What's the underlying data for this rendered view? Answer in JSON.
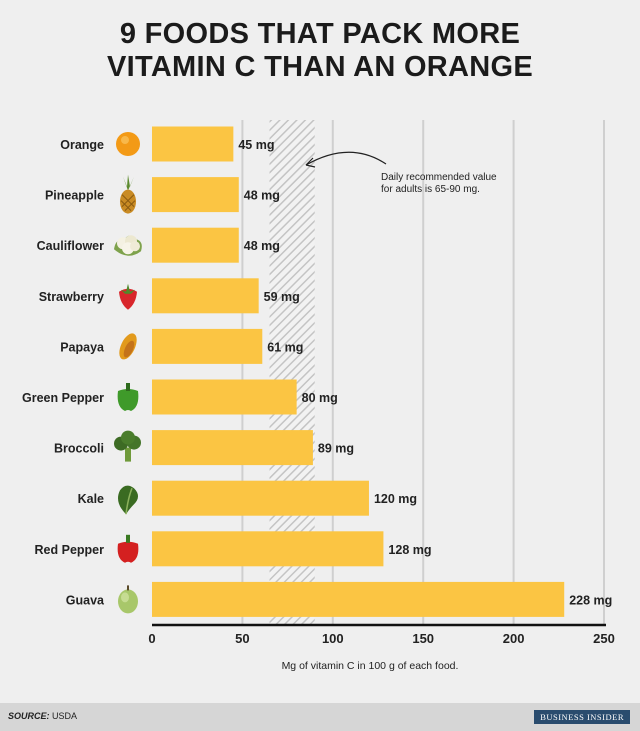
{
  "title_lines": [
    "9 FOODS THAT PACK MORE",
    "VITAMIN C THAN AN ORANGE"
  ],
  "chart_data": {
    "type": "bar",
    "orientation": "horizontal",
    "title": "9 FOODS THAT PACK MORE VITAMIN C THAN AN ORANGE",
    "categories": [
      "Orange",
      "Pineapple",
      "Cauliflower",
      "Strawberry",
      "Papaya",
      "Green Pepper",
      "Broccoli",
      "Kale",
      "Red Pepper",
      "Guava"
    ],
    "values": [
      45,
      48,
      48,
      59,
      61,
      80,
      89,
      120,
      128,
      228
    ],
    "value_labels": [
      "45 mg",
      "48 mg",
      "48 mg",
      "59 mg",
      "61 mg",
      "80 mg",
      "89 mg",
      "120 mg",
      "128 mg",
      "228 mg"
    ],
    "xlim": [
      0,
      250
    ],
    "xticks": [
      0,
      50,
      100,
      150,
      200,
      250
    ],
    "xlabel": "Mg of vitamin C in 100 g of each food.",
    "ylabel": "",
    "grid": "vertical",
    "bar_color": "#fbc543",
    "band_color": "#cfcfcf",
    "recommended_range": [
      65,
      90
    ],
    "annotation": [
      "Daily recommended value",
      "for adults is 65-90 mg."
    ],
    "icons": [
      "orange-icon",
      "pineapple-icon",
      "cauliflower-icon",
      "strawberry-icon",
      "papaya-icon",
      "green-pepper-icon",
      "broccoli-icon",
      "kale-icon",
      "red-pepper-icon",
      "guava-icon"
    ]
  },
  "footer": {
    "source_label": "SOURCE:",
    "source_value": "USDA",
    "brand": "BUSINESS INSIDER"
  }
}
